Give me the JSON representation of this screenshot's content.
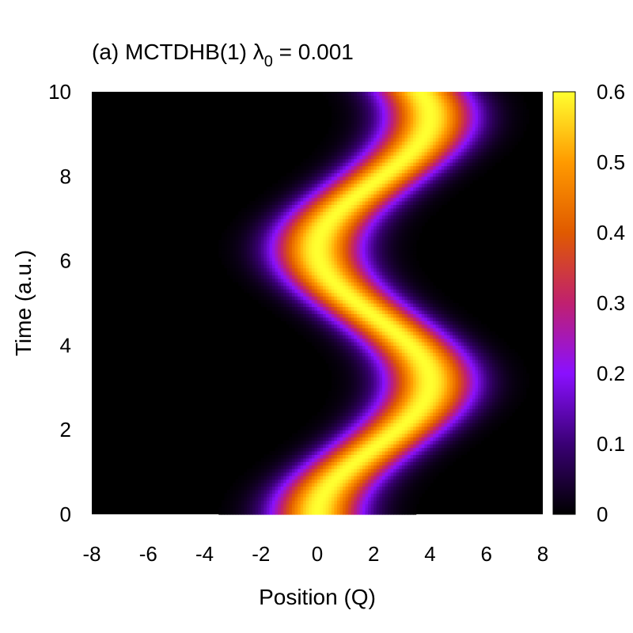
{
  "chart_data": {
    "type": "heatmap",
    "title_main": "(a) MCTDHB(1) λ",
    "title_sub": "0",
    "title_tail": " = 0.001",
    "xlabel": "Position (Q)",
    "ylabel": "Time (a.u.)",
    "xlim": [
      -8,
      8
    ],
    "ylim": [
      0,
      10
    ],
    "xticks": [
      "-8",
      "-6",
      "-4",
      "-2",
      "0",
      "2",
      "4",
      "6",
      "8"
    ],
    "yticks": [
      "0",
      "2",
      "4",
      "6",
      "8",
      "10"
    ],
    "colorbar": {
      "range": [
        0,
        0.6
      ],
      "ticks": [
        "0",
        "0.1",
        "0.2",
        "0.3",
        "0.4",
        "0.5",
        "0.6"
      ]
    },
    "density_model": {
      "description_values": "Gaussian wavepacket oscillating in position over time",
      "peak_density": 0.6,
      "center_amplitude": 2.0,
      "center_offset": 2.0,
      "period": 6.28,
      "width": 1.1
    },
    "palette": {
      "stops": [
        0,
        0.1,
        0.2,
        0.3,
        0.4,
        0.5,
        0.6
      ],
      "colors": [
        "#000000",
        "#3a0075",
        "#8a10ff",
        "#c0206f",
        "#e05a00",
        "#ff9a00",
        "#ffff30"
      ]
    }
  }
}
